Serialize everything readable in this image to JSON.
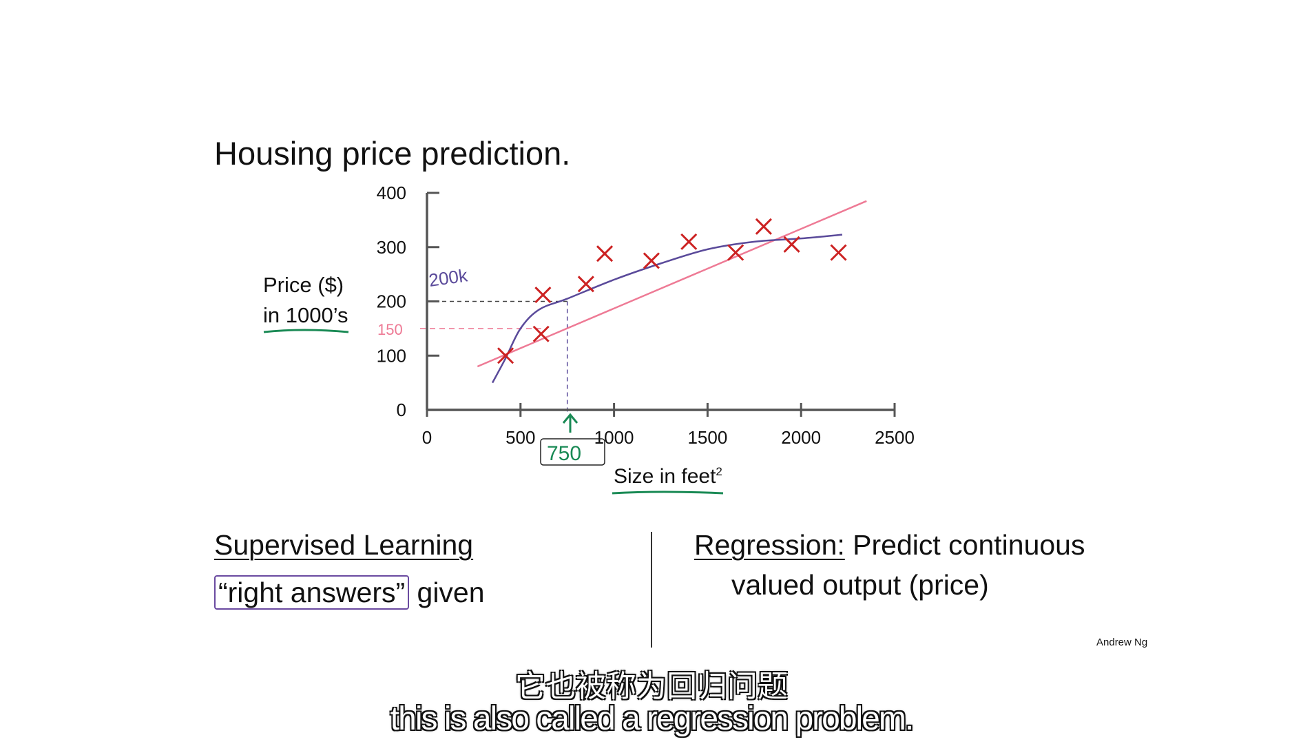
{
  "chart_data": {
    "type": "scatter",
    "title": "Housing price prediction.",
    "ylabel": [
      "Price ($)",
      "in 1000’s"
    ],
    "xlabel": "Size in feet",
    "xlabel_sup": "2",
    "xlim": [
      0,
      2500
    ],
    "ylim": [
      0,
      400
    ],
    "x_ticks": [
      0,
      500,
      1000,
      1500,
      2000,
      2500
    ],
    "y_ticks": [
      0,
      100,
      200,
      300,
      400
    ],
    "grid": false,
    "points": [
      {
        "x": 420,
        "y": 100
      },
      {
        "x": 610,
        "y": 140
      },
      {
        "x": 620,
        "y": 212
      },
      {
        "x": 850,
        "y": 232
      },
      {
        "x": 950,
        "y": 288
      },
      {
        "x": 1200,
        "y": 275
      },
      {
        "x": 1400,
        "y": 310
      },
      {
        "x": 1650,
        "y": 290
      },
      {
        "x": 1800,
        "y": 338
      },
      {
        "x": 1950,
        "y": 305
      },
      {
        "x": 2200,
        "y": 290
      }
    ],
    "fit_straight": [
      [
        270,
        80
      ],
      [
        2350,
        385
      ]
    ],
    "fit_curve": [
      [
        350,
        50
      ],
      [
        420,
        95
      ],
      [
        500,
        150
      ],
      [
        600,
        185
      ],
      [
        750,
        205
      ],
      [
        1000,
        240
      ],
      [
        1250,
        270
      ],
      [
        1500,
        296
      ],
      [
        1750,
        310
      ],
      [
        2000,
        316
      ],
      [
        2220,
        323
      ]
    ],
    "annotations": {
      "prediction_x": "750",
      "curve_value": "200k",
      "line_value": "150"
    },
    "colors": {
      "points": "#cc2222",
      "curve": "#5a4a9a",
      "line": "#ee7a95",
      "axes": "#555555",
      "green": "#1a8a55"
    }
  },
  "notes": {
    "supervised_title": "Supervised Learning",
    "right_answers": "“right answers”",
    "given": " given",
    "regression_label": "Regression:",
    "regression_text": " Predict continuous",
    "regression_text2": "valued output (price)"
  },
  "author": "Andrew Ng",
  "subtitles": {
    "zh": "它也被称为回归问题",
    "en": "this is also called a regression problem."
  }
}
